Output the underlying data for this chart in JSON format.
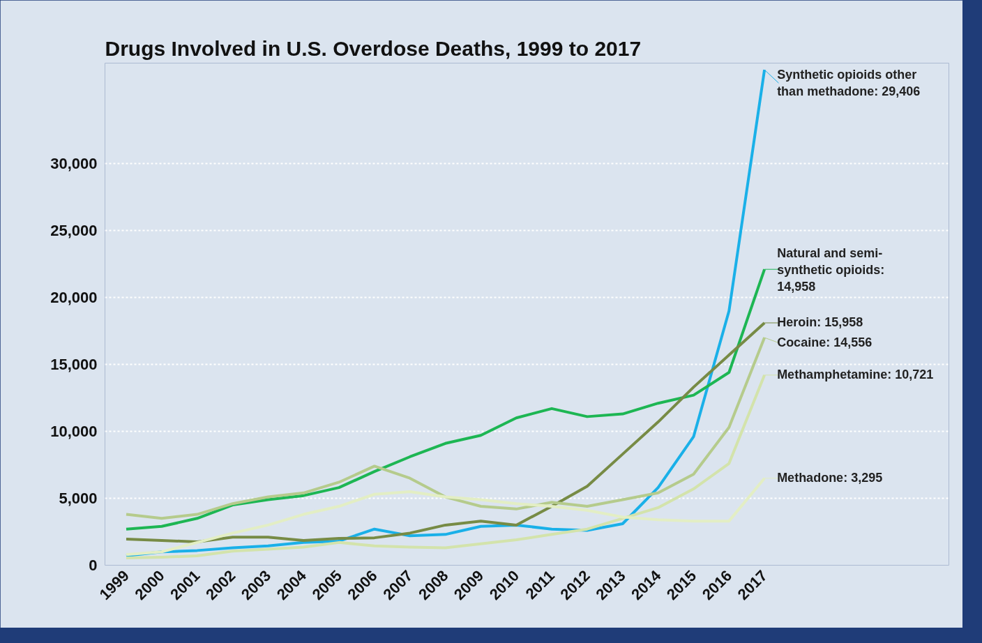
{
  "chart_data": {
    "type": "line",
    "title": "Drugs Involved in U.S. Overdose Deaths, 1999 to 2017",
    "categories": [
      "1999",
      "2000",
      "2001",
      "2002",
      "2003",
      "2004",
      "2005",
      "2006",
      "2007",
      "2008",
      "2009",
      "2010",
      "2011",
      "2012",
      "2013",
      "2014",
      "2015",
      "2016",
      "2017"
    ],
    "ylim": [
      0,
      37500
    ],
    "yticks": [
      {
        "value": 0,
        "label": "0"
      },
      {
        "value": 5000,
        "label": "5,000"
      },
      {
        "value": 10000,
        "label": "10,000"
      },
      {
        "value": 15000,
        "label": "15,000"
      },
      {
        "value": 20000,
        "label": "20,000"
      },
      {
        "value": 25000,
        "label": "25,000"
      },
      {
        "value": 30000,
        "label": "30,000"
      }
    ],
    "grid": "y",
    "legend": "right",
    "marker": "none",
    "line_style": "solid",
    "series": [
      {
        "name": "Synthetic opioids other than methadone: 29,406",
        "color": "#1ab0e8",
        "values": [
          700,
          1000,
          1100,
          1300,
          1450,
          1700,
          1800,
          2700,
          2200,
          2300,
          2900,
          3000,
          2700,
          2600,
          3100,
          5800,
          9600,
          19000,
          37000
        ]
      },
      {
        "name": "Natural and semi-synthetic opioids: 14,958",
        "color": "#1db653",
        "values": [
          2700,
          2900,
          3500,
          4500,
          4900,
          5200,
          5800,
          7000,
          8100,
          9100,
          9700,
          11000,
          11700,
          11100,
          11300,
          12100,
          12700,
          14400,
          22100
        ]
      },
      {
        "name": "Heroin: 15,958",
        "color": "#778b45",
        "values": [
          1950,
          1850,
          1750,
          2100,
          2100,
          1850,
          2000,
          2050,
          2400,
          3000,
          3300,
          3000,
          4400,
          5900,
          8300,
          10700,
          13300,
          15700,
          18100
        ]
      },
      {
        "name": "Cocaine: 14,556",
        "color": "#b5cb8c",
        "values": [
          3800,
          3500,
          3800,
          4600,
          5100,
          5400,
          6200,
          7400,
          6500,
          5100,
          4400,
          4200,
          4700,
          4400,
          4900,
          5400,
          6800,
          10300,
          17000
        ]
      },
      {
        "name": "Methamphetamine: 10,721",
        "color": "#d3e3ab",
        "values": [
          550,
          600,
          700,
          1050,
          1200,
          1350,
          1700,
          1450,
          1350,
          1300,
          1600,
          1900,
          2300,
          2700,
          3500,
          4300,
          5700,
          7600,
          14200
        ]
      },
      {
        "name": "Methadone: 3,295",
        "color": "#e3eec4",
        "values": [
          800,
          1000,
          1700,
          2400,
          3000,
          3800,
          4400,
          5300,
          5500,
          5100,
          4900,
          4600,
          4400,
          4100,
          3600,
          3400,
          3300,
          3300,
          6500
        ]
      }
    ]
  }
}
